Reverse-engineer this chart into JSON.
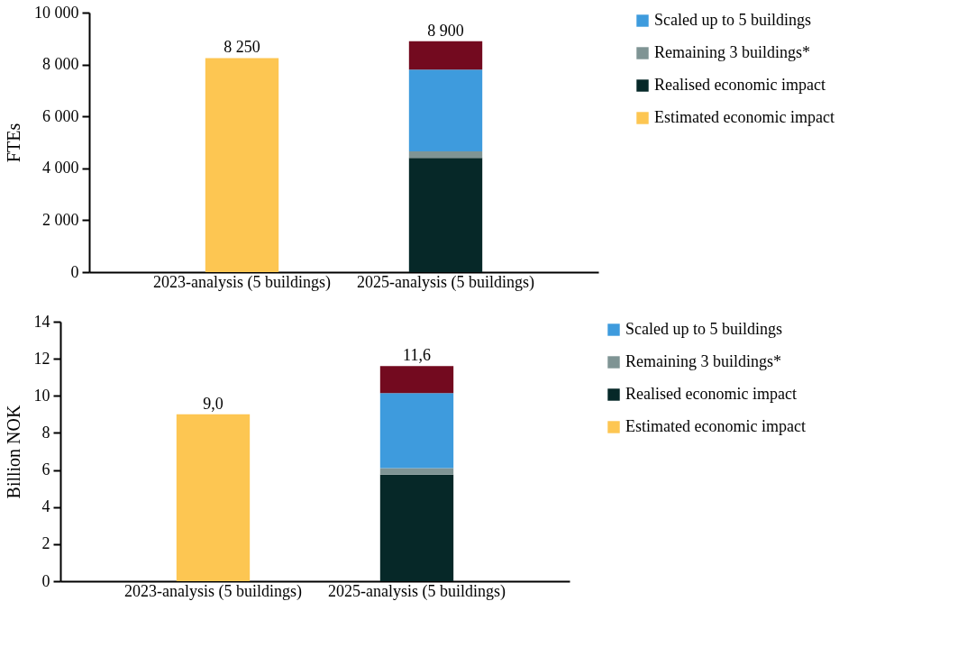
{
  "chart_data": [
    {
      "type": "bar",
      "ylabel": "FTEs",
      "categories": [
        "2023-analysis (5 buildings)",
        "2025-analysis (5 buildings)"
      ],
      "stacked": true,
      "series": [
        {
          "name": "Estimated economic impact",
          "color": "#fdc652",
          "values": [
            8250,
            null
          ]
        },
        {
          "name": "Realised economic impact",
          "color": "#062828",
          "values": [
            null,
            4400
          ]
        },
        {
          "name": "Remaining 3 buildings*",
          "color": "#7f9494",
          "values": [
            null,
            250
          ]
        },
        {
          "name": "Scaled up to 5 buildings",
          "color": "#3e9bdd",
          "values": [
            null,
            3150
          ]
        },
        {
          "color": "#730a1f",
          "values": [
            null,
            1100
          ]
        }
      ],
      "ylim": [
        0,
        10000
      ],
      "yticks": [
        0,
        {
          "value": 2000,
          "label": "2 000"
        },
        {
          "value": 4000,
          "label": "4 000"
        },
        {
          "value": 6000,
          "label": "6 000"
        },
        {
          "value": 8000,
          "label": "8 000"
        },
        {
          "value": 10000,
          "label": "10 000"
        }
      ],
      "totals": [
        "8 250",
        "8 900"
      ],
      "legend": "right",
      "grid": false
    },
    {
      "type": "bar",
      "ylabel": "Billion NOK",
      "categories": [
        "2023-analysis (5 buildings)",
        "2025-analysis (5 buildings)"
      ],
      "stacked": true,
      "series": [
        {
          "name": "Estimated economic impact",
          "color": "#fdc652",
          "values": [
            9.0,
            null
          ]
        },
        {
          "name": "Realised economic impact",
          "color": "#062828",
          "values": [
            null,
            5.75
          ]
        },
        {
          "name": "Remaining 3 buildings*",
          "color": "#7f9494",
          "values": [
            null,
            0.35
          ]
        },
        {
          "name": "Scaled up to 5 buildings",
          "color": "#3e9bdd",
          "values": [
            null,
            4.05
          ]
        },
        {
          "color": "#730a1f",
          "values": [
            null,
            1.45
          ]
        }
      ],
      "ylim": [
        0,
        14
      ],
      "yticks": [
        0,
        2,
        4,
        6,
        8,
        10,
        12,
        14
      ],
      "totals": [
        "9,0",
        "11,6"
      ],
      "legend": "right",
      "grid": false
    }
  ]
}
